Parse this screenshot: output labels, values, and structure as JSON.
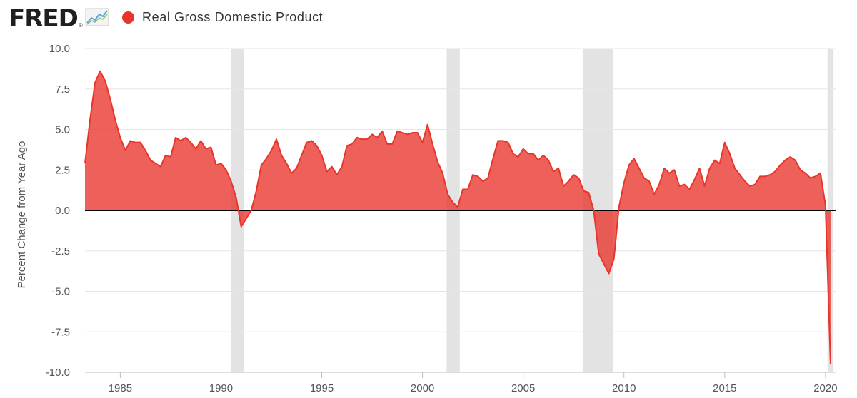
{
  "header": {
    "logo_text": "FRED",
    "logo_mark": "®",
    "logo_icon": "line-chart-icon"
  },
  "colors": {
    "series": "#e8352b",
    "series_fill": "#e8352b",
    "recession": "#e3e3e3",
    "grid": "#e6e6e6",
    "zero_line": "#000000",
    "tick_text": "#555555"
  },
  "chart_data": {
    "type": "area",
    "title": "",
    "ylabel": "Percent Change from Year Ago",
    "xlabel": "",
    "ylim": [
      -10,
      10
    ],
    "xlim": [
      1983.25,
      2020.5
    ],
    "grid": "horizontal",
    "legend_position": "top",
    "y_ticks": [
      10,
      7.5,
      5,
      2.5,
      0,
      -2.5,
      -5,
      -7.5,
      -10
    ],
    "y_tick_labels": [
      "10.0",
      "7.5",
      "5.0",
      "2.5",
      "0.0",
      "-2.5",
      "-5.0",
      "-7.5",
      "-10.0"
    ],
    "x_ticks": [
      1985,
      1990,
      1995,
      2000,
      2005,
      2010,
      2015,
      2020
    ],
    "x_tick_labels": [
      "1985",
      "1990",
      "1995",
      "2000",
      "2005",
      "2010",
      "2015",
      "2020"
    ],
    "recessions": [
      [
        1990.5,
        1991.15
      ],
      [
        2001.2,
        2001.85
      ],
      [
        2007.95,
        2009.45
      ],
      [
        2020.1,
        2020.4
      ]
    ],
    "series": [
      {
        "name": "Real Gross Domestic Product",
        "x": [
          1983.25,
          1983.5,
          1983.75,
          1984.0,
          1984.25,
          1984.5,
          1984.75,
          1985.0,
          1985.25,
          1985.5,
          1985.75,
          1986.0,
          1986.25,
          1986.5,
          1986.75,
          1987.0,
          1987.25,
          1987.5,
          1987.75,
          1988.0,
          1988.25,
          1988.5,
          1988.75,
          1989.0,
          1989.25,
          1989.5,
          1989.75,
          1990.0,
          1990.25,
          1990.5,
          1990.75,
          1991.0,
          1991.25,
          1991.5,
          1991.75,
          1992.0,
          1992.25,
          1992.5,
          1992.75,
          1993.0,
          1993.25,
          1993.5,
          1993.75,
          1994.0,
          1994.25,
          1994.5,
          1994.75,
          1995.0,
          1995.25,
          1995.5,
          1995.75,
          1996.0,
          1996.25,
          1996.5,
          1996.75,
          1997.0,
          1997.25,
          1997.5,
          1997.75,
          1998.0,
          1998.25,
          1998.5,
          1998.75,
          1999.0,
          1999.25,
          1999.5,
          1999.75,
          2000.0,
          2000.25,
          2000.5,
          2000.75,
          2001.0,
          2001.25,
          2001.5,
          2001.75,
          2002.0,
          2002.25,
          2002.5,
          2002.75,
          2003.0,
          2003.25,
          2003.5,
          2003.75,
          2004.0,
          2004.25,
          2004.5,
          2004.75,
          2005.0,
          2005.25,
          2005.5,
          2005.75,
          2006.0,
          2006.25,
          2006.5,
          2006.75,
          2007.0,
          2007.25,
          2007.5,
          2007.75,
          2008.0,
          2008.25,
          2008.5,
          2008.75,
          2009.0,
          2009.25,
          2009.5,
          2009.75,
          2010.0,
          2010.25,
          2010.5,
          2010.75,
          2011.0,
          2011.25,
          2011.5,
          2011.75,
          2012.0,
          2012.25,
          2012.5,
          2012.75,
          2013.0,
          2013.25,
          2013.5,
          2013.75,
          2014.0,
          2014.25,
          2014.5,
          2014.75,
          2015.0,
          2015.25,
          2015.5,
          2015.75,
          2016.0,
          2016.25,
          2016.5,
          2016.75,
          2017.0,
          2017.25,
          2017.5,
          2017.75,
          2018.0,
          2018.25,
          2018.5,
          2018.75,
          2019.0,
          2019.25,
          2019.5,
          2019.75,
          2020.0,
          2020.25
        ],
        "values": [
          2.9,
          5.6,
          7.9,
          8.6,
          8.0,
          6.9,
          5.6,
          4.5,
          3.7,
          4.3,
          4.2,
          4.2,
          3.7,
          3.1,
          2.9,
          2.7,
          3.4,
          3.3,
          4.5,
          4.3,
          4.5,
          4.2,
          3.8,
          4.3,
          3.8,
          3.9,
          2.8,
          2.9,
          2.5,
          1.8,
          0.8,
          -1.0,
          -0.5,
          0.0,
          1.2,
          2.8,
          3.2,
          3.7,
          4.4,
          3.4,
          2.9,
          2.3,
          2.6,
          3.4,
          4.2,
          4.3,
          4.0,
          3.4,
          2.4,
          2.7,
          2.2,
          2.7,
          4.0,
          4.1,
          4.5,
          4.4,
          4.4,
          4.7,
          4.5,
          4.9,
          4.1,
          4.1,
          4.9,
          4.8,
          4.7,
          4.8,
          4.8,
          4.2,
          5.3,
          4.1,
          3.0,
          2.3,
          1.0,
          0.5,
          0.2,
          1.3,
          1.3,
          2.2,
          2.1,
          1.8,
          2.0,
          3.2,
          4.3,
          4.3,
          4.2,
          3.5,
          3.3,
          3.8,
          3.5,
          3.5,
          3.1,
          3.4,
          3.1,
          2.4,
          2.6,
          1.5,
          1.8,
          2.2,
          2.0,
          1.2,
          1.1,
          0.0,
          -2.7,
          -3.3,
          -3.9,
          -3.0,
          0.2,
          1.7,
          2.8,
          3.2,
          2.6,
          2.0,
          1.8,
          1.0,
          1.6,
          2.6,
          2.3,
          2.5,
          1.5,
          1.6,
          1.3,
          1.9,
          2.6,
          1.5,
          2.6,
          3.1,
          2.9,
          4.2,
          3.5,
          2.6,
          2.2,
          1.8,
          1.5,
          1.6,
          2.1,
          2.1,
          2.2,
          2.4,
          2.8,
          3.1,
          3.3,
          3.1,
          2.5,
          2.3,
          2.0,
          2.1,
          2.3,
          0.3,
          -9.5
        ]
      }
    ]
  }
}
